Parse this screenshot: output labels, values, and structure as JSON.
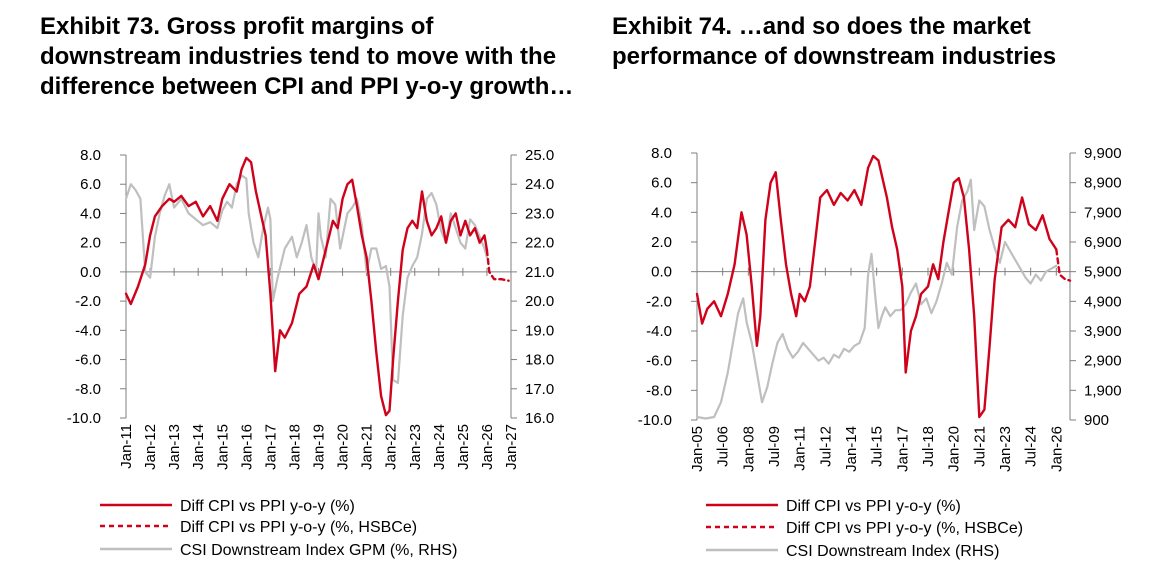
{
  "titles": {
    "left": "Exhibit 73. Gross profit margins of downstream industries tend to move with the difference between CPI and PPI y-o-y growth…",
    "right": "Exhibit 74. …and so does the market performance of downstream industries"
  },
  "colors": {
    "red": "#d0021b",
    "gray": "#bfbfbf",
    "axis": "#7f7f7f"
  },
  "chart_data": [
    {
      "type": "line",
      "title": "Exhibit 73. Gross profit margins of downstream industries tend to move with the difference between CPI and PPI y-o-y growth…",
      "y_left_ticks": [
        "8.0",
        "6.0",
        "4.0",
        "2.0",
        "0.0",
        "-2.0",
        "-4.0",
        "-6.0",
        "-8.0",
        "-10.0"
      ],
      "y_right_ticks": [
        "25.0",
        "24.0",
        "23.0",
        "22.0",
        "21.0",
        "20.0",
        "19.0",
        "18.0",
        "17.0",
        "16.0"
      ],
      "ylim_left": [
        -10,
        8
      ],
      "ylim_right": [
        16,
        25
      ],
      "x_range": [
        2011.0,
        2027.0
      ],
      "x_ticks": [
        "Jan-11",
        "Jan-12",
        "Jan-13",
        "Jan-14",
        "Jan-15",
        "Jan-16",
        "Jan-17",
        "Jan-18",
        "Jan-19",
        "Jan-20",
        "Jan-21",
        "Jan-22",
        "Jan-23",
        "Jan-24",
        "Jan-25",
        "Jan-26",
        "Jan-27"
      ],
      "x_tick_positions": [
        2011,
        2012,
        2013,
        2014,
        2015,
        2016,
        2017,
        2018,
        2019,
        2020,
        2021,
        2022,
        2023,
        2024,
        2025,
        2026,
        2027
      ],
      "legend": [
        "Diff CPI vs PPI y-o-y (%)",
        "Diff CPI vs PPI y-o-y (%, HSBCe)",
        "CSI Downstream Index GPM (%, RHS)"
      ],
      "series": [
        {
          "name": "Diff CPI vs PPI y-o-y (%)",
          "axis": "left",
          "style": "solid-red",
          "x": [
            2011.0,
            2011.2,
            2011.5,
            2011.8,
            2012.0,
            2012.2,
            2012.5,
            2012.8,
            2013.0,
            2013.3,
            2013.6,
            2013.9,
            2014.2,
            2014.5,
            2014.8,
            2015.0,
            2015.3,
            2015.6,
            2015.8,
            2016.0,
            2016.2,
            2016.4,
            2016.6,
            2016.8,
            2017.0,
            2017.2,
            2017.4,
            2017.6,
            2017.9,
            2018.2,
            2018.5,
            2018.8,
            2019.0,
            2019.3,
            2019.6,
            2019.8,
            2020.0,
            2020.2,
            2020.4,
            2020.6,
            2020.8,
            2021.0,
            2021.2,
            2021.4,
            2021.6,
            2021.8,
            2021.95,
            2022.1,
            2022.3,
            2022.5,
            2022.7,
            2022.9,
            2023.1,
            2023.3,
            2023.5,
            2023.7,
            2023.9,
            2024.1,
            2024.3,
            2024.5,
            2024.7,
            2024.9,
            2025.1,
            2025.3,
            2025.5,
            2025.7,
            2025.9,
            2026.0
          ],
          "y": [
            -1.5,
            -2.2,
            -1.0,
            0.5,
            2.5,
            3.8,
            4.5,
            5.0,
            4.8,
            5.2,
            4.5,
            4.8,
            3.8,
            4.5,
            3.5,
            5.0,
            6.0,
            5.5,
            7.0,
            7.8,
            7.5,
            5.5,
            4.0,
            2.5,
            -1.5,
            -6.8,
            -4.0,
            -4.5,
            -3.5,
            -1.5,
            -1.0,
            0.5,
            -0.5,
            1.5,
            3.5,
            3.0,
            5.0,
            6.0,
            6.3,
            4.5,
            2.5,
            1.0,
            -2.0,
            -5.5,
            -8.5,
            -9.8,
            -9.5,
            -6.0,
            -2.0,
            1.5,
            3.0,
            3.5,
            3.0,
            5.5,
            3.5,
            2.5,
            3.0,
            3.8,
            2.0,
            3.5,
            4.0,
            2.5,
            3.5,
            2.5,
            3.0,
            2.0,
            2.5,
            1.5
          ]
        },
        {
          "name": "Diff CPI vs PPI y-o-y (%, HSBCe)",
          "axis": "left",
          "style": "dashed-red",
          "x": [
            2026.0,
            2026.1,
            2026.3,
            2026.6,
            2026.9
          ],
          "y": [
            1.5,
            0.0,
            -0.5,
            -0.5,
            -0.6
          ]
        },
        {
          "name": "CSI Downstream Index GPM (%, RHS)",
          "axis": "right",
          "style": "solid-gray",
          "x": [
            2011.0,
            2011.2,
            2011.4,
            2011.6,
            2011.8,
            2012.0,
            2012.2,
            2012.4,
            2012.6,
            2012.8,
            2013.0,
            2013.3,
            2013.6,
            2013.9,
            2014.2,
            2014.5,
            2014.8,
            2015.0,
            2015.2,
            2015.4,
            2015.6,
            2015.8,
            2016.0,
            2016.1,
            2016.3,
            2016.5,
            2016.7,
            2016.9,
            2017.0,
            2017.1,
            2017.3,
            2017.6,
            2017.9,
            2018.1,
            2018.3,
            2018.5,
            2018.7,
            2018.9,
            2019.0,
            2019.1,
            2019.3,
            2019.5,
            2019.7,
            2019.9,
            2020.0,
            2020.2,
            2020.4,
            2020.6,
            2020.8,
            2021.0,
            2021.2,
            2021.4,
            2021.6,
            2021.8,
            2021.95,
            2022.1,
            2022.3,
            2022.5,
            2022.7,
            2022.9,
            2023.1,
            2023.3,
            2023.5,
            2023.7,
            2023.9,
            2024.1,
            2024.3,
            2024.5,
            2024.7,
            2024.9,
            2025.1,
            2025.3,
            2025.5,
            2025.7,
            2025.9,
            2026.0
          ],
          "y": [
            23.5,
            24.0,
            23.8,
            23.5,
            21.0,
            20.8,
            22.2,
            23.0,
            23.6,
            24.0,
            23.2,
            23.5,
            23.0,
            22.8,
            22.6,
            22.7,
            22.5,
            23.1,
            23.4,
            23.2,
            24.0,
            24.3,
            24.2,
            23.0,
            22.0,
            21.5,
            22.5,
            23.2,
            22.8,
            20.0,
            20.8,
            21.8,
            22.2,
            21.5,
            22.0,
            22.6,
            21.5,
            21.0,
            23.0,
            22.2,
            21.5,
            23.5,
            23.3,
            21.8,
            22.2,
            23.0,
            23.2,
            23.5,
            22.6,
            21.0,
            21.8,
            21.8,
            21.1,
            21.2,
            20.5,
            17.3,
            17.2,
            19.5,
            20.8,
            21.2,
            21.5,
            22.3,
            23.5,
            23.7,
            23.3,
            22.4,
            22.0,
            23.0,
            22.5,
            22.0,
            21.8,
            22.8,
            22.6,
            22.2,
            21.8,
            21.5
          ]
        }
      ]
    },
    {
      "type": "line",
      "title": "Exhibit 74. …and so does the market performance of downstream industries",
      "y_left_ticks": [
        "8.0",
        "6.0",
        "4.0",
        "2.0",
        "0.0",
        "-2.0",
        "-4.0",
        "-6.0",
        "-8.0",
        "-10.0"
      ],
      "y_right_ticks": [
        "9,900",
        "8,900",
        "7,900",
        "6,900",
        "5,900",
        "4,900",
        "3,900",
        "2,900",
        "1,900",
        "900"
      ],
      "ylim_left": [
        -10,
        8
      ],
      "ylim_right": [
        900,
        9900
      ],
      "x_range": [
        2005.0,
        2026.8
      ],
      "x_ticks": [
        "Jan-05",
        "Jul-06",
        "Jan-08",
        "Jul-09",
        "Jan-11",
        "Jul-12",
        "Jan-14",
        "Jul-15",
        "Jan-17",
        "Jul-18",
        "Jan-20",
        "Jul-21",
        "Jan-23",
        "Jul-24",
        "Jan-26"
      ],
      "x_tick_positions": [
        2005.0,
        2006.5,
        2008.0,
        2009.5,
        2011.0,
        2012.5,
        2014.0,
        2015.5,
        2017.0,
        2018.5,
        2020.0,
        2021.5,
        2023.0,
        2024.5,
        2026.0
      ],
      "legend": [
        "Diff CPI vs PPI y-o-y (%)",
        "Diff CPI vs PPI y-o-y (%, HSBCe)",
        "CSI Downstream Index (RHS)"
      ],
      "series": [
        {
          "name": "Diff CPI vs PPI y-o-y (%)",
          "axis": "left",
          "style": "solid-red",
          "x": [
            2005.0,
            2005.3,
            2005.6,
            2006.0,
            2006.4,
            2006.8,
            2007.2,
            2007.6,
            2007.9,
            2008.2,
            2008.5,
            2008.7,
            2009.0,
            2009.3,
            2009.6,
            2009.9,
            2010.2,
            2010.5,
            2010.8,
            2011.0,
            2011.3,
            2011.6,
            2011.9,
            2012.2,
            2012.6,
            2013.0,
            2013.4,
            2013.8,
            2014.2,
            2014.6,
            2015.0,
            2015.3,
            2015.6,
            2015.8,
            2016.1,
            2016.4,
            2016.7,
            2017.0,
            2017.2,
            2017.5,
            2017.8,
            2018.1,
            2018.5,
            2018.8,
            2019.1,
            2019.4,
            2019.7,
            2020.0,
            2020.3,
            2020.6,
            2020.9,
            2021.2,
            2021.5,
            2021.8,
            2022.1,
            2022.4,
            2022.8,
            2023.2,
            2023.6,
            2024.0,
            2024.4,
            2024.8,
            2025.2,
            2025.6,
            2026.0
          ],
          "y": [
            -1.5,
            -3.5,
            -2.5,
            -2.0,
            -3.0,
            -1.5,
            0.5,
            4.0,
            2.5,
            -1.0,
            -5.0,
            -3.0,
            3.5,
            6.0,
            6.7,
            3.5,
            0.5,
            -1.5,
            -3.0,
            -1.5,
            -2.0,
            -1.0,
            2.0,
            5.0,
            5.5,
            4.5,
            5.3,
            4.8,
            5.5,
            4.5,
            7.0,
            7.8,
            7.5,
            6.5,
            5.0,
            3.0,
            1.5,
            -1.0,
            -6.8,
            -4.0,
            -3.0,
            -1.5,
            -1.0,
            0.5,
            -0.5,
            2.0,
            4.0,
            6.0,
            6.3,
            5.0,
            1.5,
            -3.0,
            -9.8,
            -9.3,
            -5.0,
            -0.5,
            3.0,
            3.5,
            3.0,
            5.0,
            3.2,
            2.8,
            3.8,
            2.2,
            1.5
          ]
        },
        {
          "name": "Diff CPI vs PPI y-o-y (%, HSBCe)",
          "axis": "left",
          "style": "dashed-red",
          "x": [
            2026.0,
            2026.2,
            2026.5,
            2026.8
          ],
          "y": [
            1.5,
            -0.2,
            -0.5,
            -0.6
          ]
        },
        {
          "name": "CSI Downstream Index (RHS)",
          "axis": "right",
          "style": "solid-gray",
          "x": [
            2005.0,
            2005.5,
            2006.0,
            2006.4,
            2006.8,
            2007.1,
            2007.4,
            2007.7,
            2007.9,
            2008.2,
            2008.5,
            2008.8,
            2009.1,
            2009.4,
            2009.7,
            2010.0,
            2010.3,
            2010.6,
            2010.9,
            2011.2,
            2011.5,
            2011.8,
            2012.1,
            2012.4,
            2012.7,
            2013.0,
            2013.3,
            2013.6,
            2013.9,
            2014.2,
            2014.5,
            2014.8,
            2015.0,
            2015.2,
            2015.4,
            2015.6,
            2015.8,
            2016.0,
            2016.3,
            2016.6,
            2016.9,
            2017.2,
            2017.5,
            2017.8,
            2018.1,
            2018.4,
            2018.7,
            2019.0,
            2019.3,
            2019.6,
            2019.9,
            2020.2,
            2020.5,
            2020.8,
            2021.0,
            2021.2,
            2021.5,
            2021.8,
            2022.1,
            2022.4,
            2022.7,
            2023.0,
            2023.3,
            2023.6,
            2023.9,
            2024.2,
            2024.5,
            2024.8,
            2025.1,
            2025.4,
            2025.7,
            2026.0
          ],
          "y": [
            1000,
            950,
            1000,
            1500,
            2500,
            3500,
            4500,
            5000,
            4200,
            3500,
            2500,
            1500,
            2000,
            2800,
            3500,
            3800,
            3300,
            3000,
            3200,
            3500,
            3300,
            3100,
            2900,
            3000,
            2800,
            3100,
            3000,
            3300,
            3200,
            3400,
            3500,
            4000,
            5800,
            6500,
            5200,
            4000,
            4400,
            4700,
            4400,
            4600,
            4600,
            4800,
            5200,
            5500,
            4800,
            5000,
            4500,
            4900,
            5500,
            6200,
            5800,
            7400,
            8300,
            8600,
            9000,
            7300,
            8300,
            8100,
            7300,
            6700,
            6200,
            6900,
            6600,
            6300,
            6000,
            5700,
            5500,
            5800,
            5600,
            5900,
            6000,
            6100
          ]
        }
      ]
    }
  ]
}
